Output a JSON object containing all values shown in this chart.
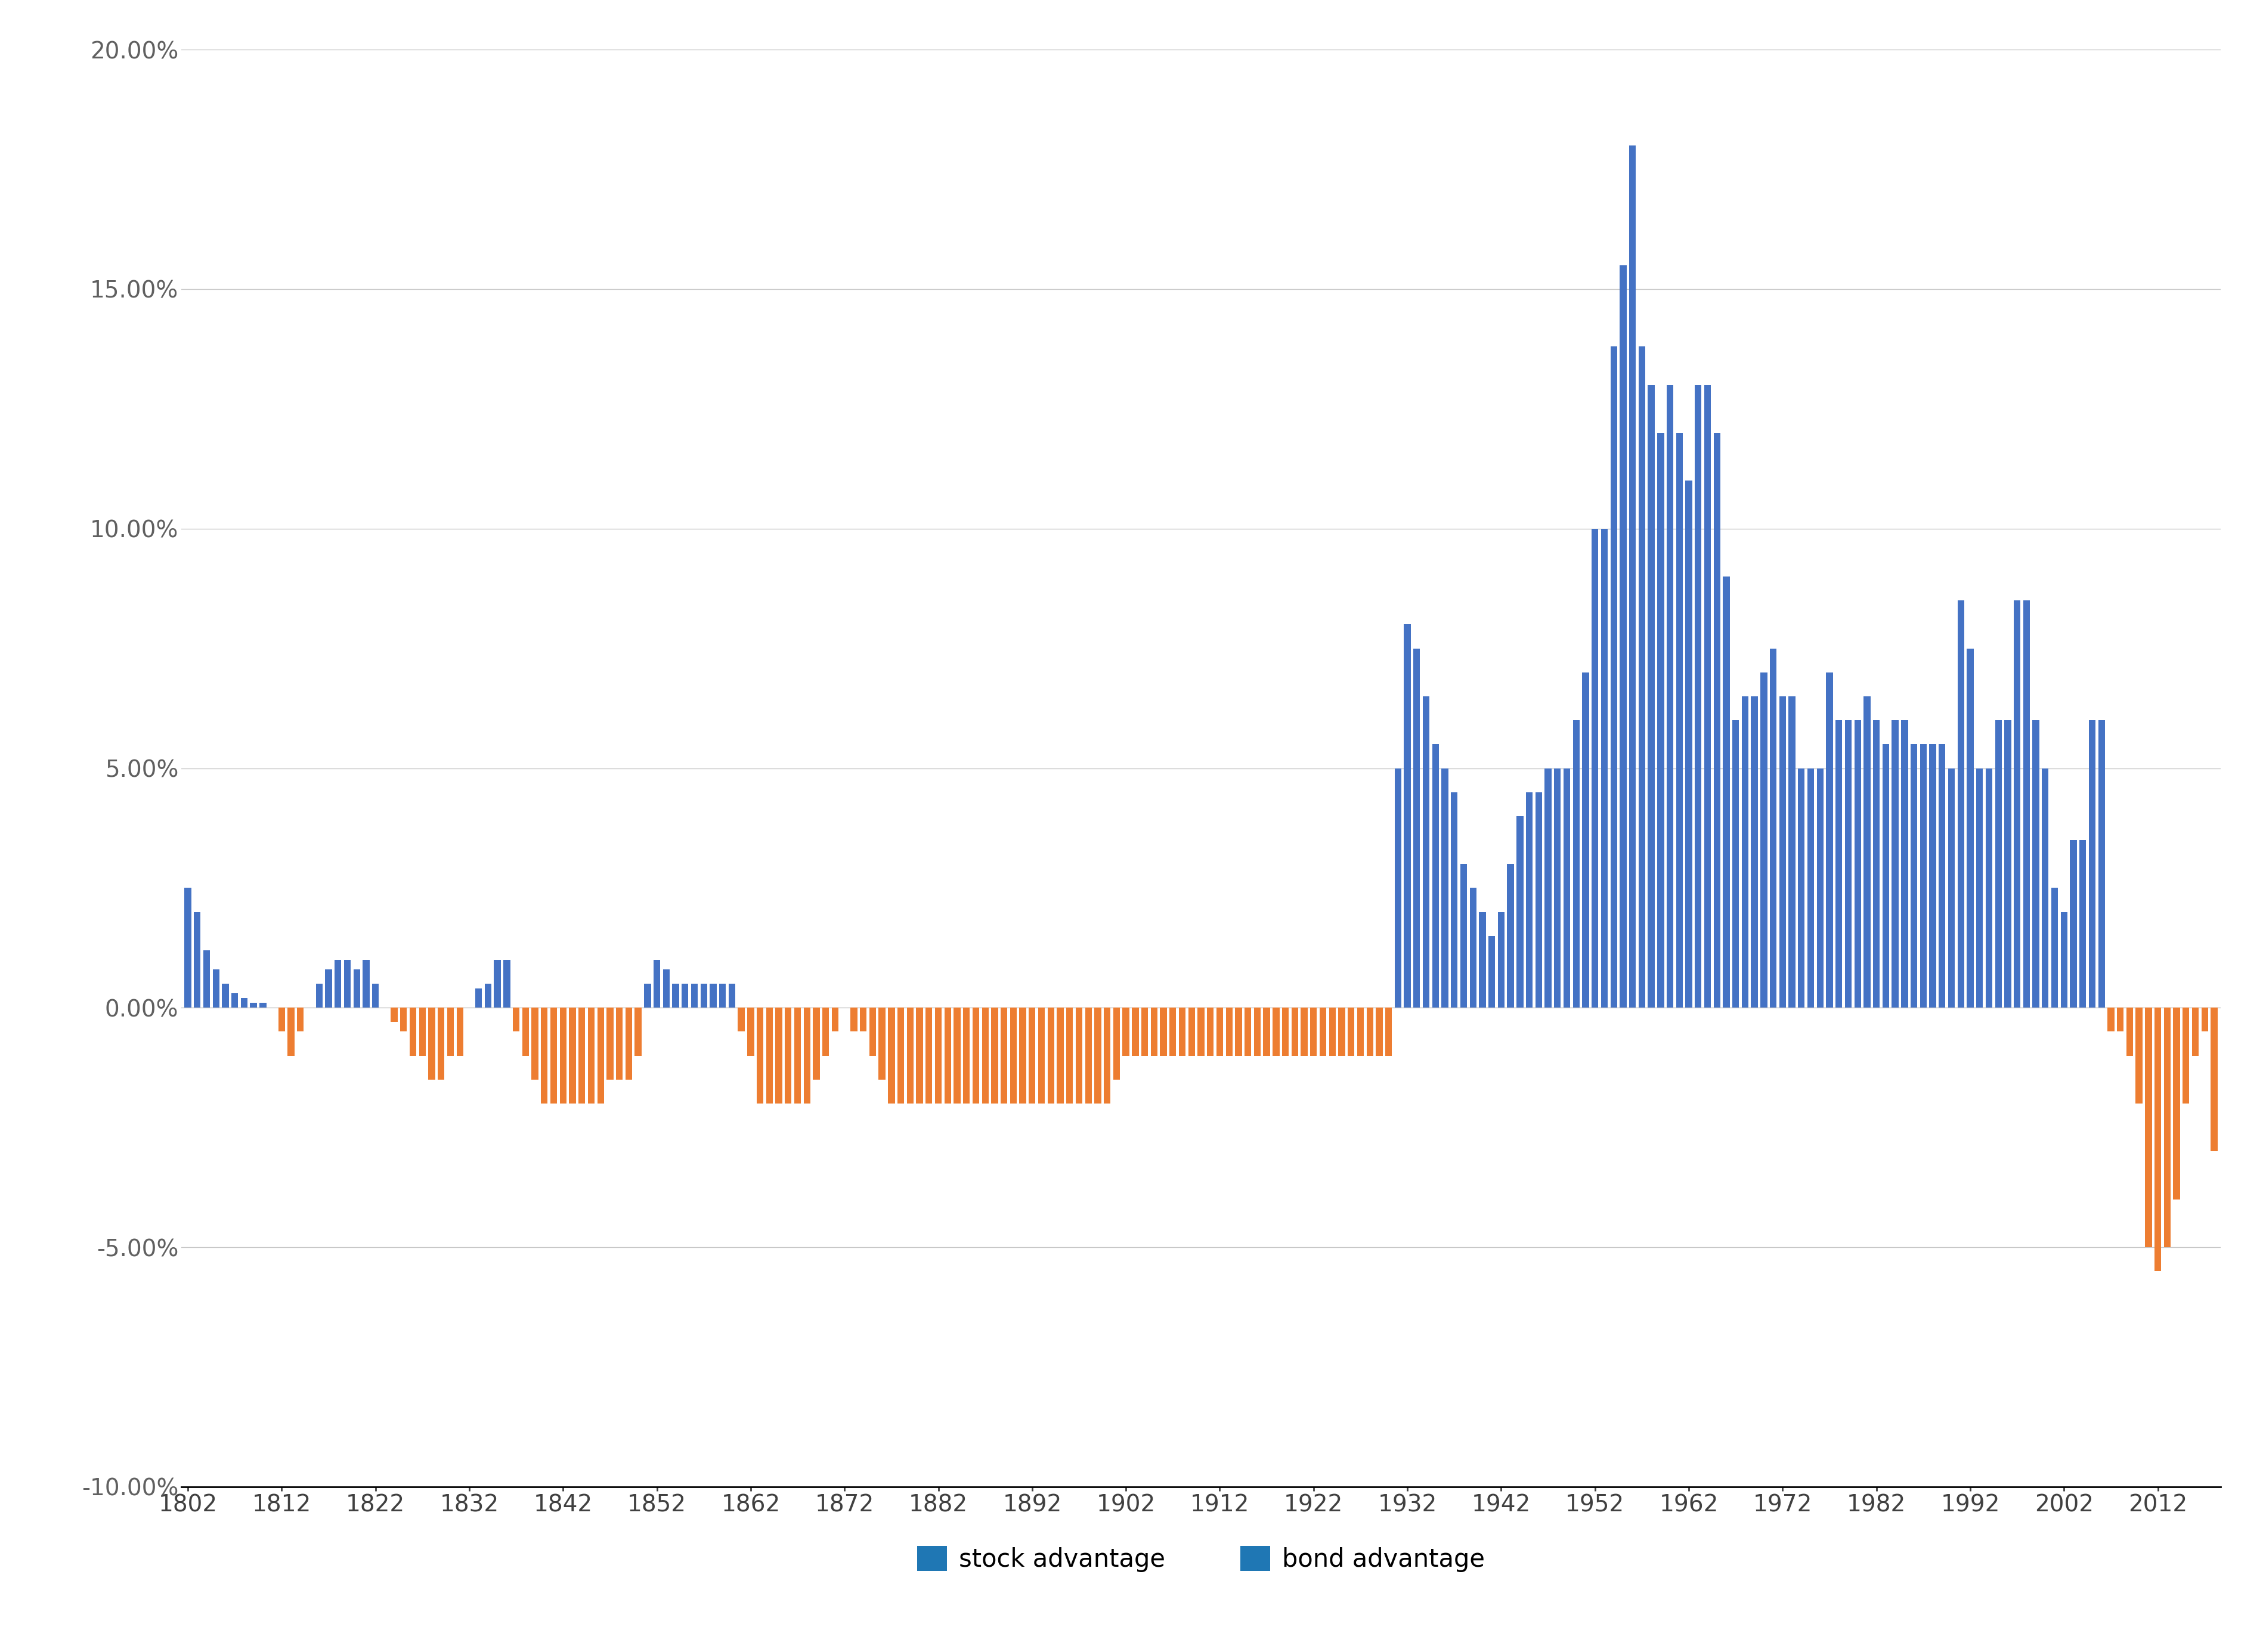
{
  "background_color": "#ffffff",
  "stock_color": "#4472C4",
  "bond_color": "#ED7D31",
  "ylim_min": -0.1,
  "ylim_max": 0.2,
  "yticks": [
    -0.1,
    -0.05,
    0.0,
    0.05,
    0.1,
    0.15,
    0.2
  ],
  "legend_labels": [
    "stock advantage",
    "bond advantage"
  ],
  "years": [
    1802,
    1803,
    1804,
    1805,
    1806,
    1807,
    1808,
    1809,
    1810,
    1811,
    1812,
    1813,
    1814,
    1815,
    1816,
    1817,
    1818,
    1819,
    1820,
    1821,
    1822,
    1823,
    1824,
    1825,
    1826,
    1827,
    1828,
    1829,
    1830,
    1831,
    1832,
    1833,
    1834,
    1835,
    1836,
    1837,
    1838,
    1839,
    1840,
    1841,
    1842,
    1843,
    1844,
    1845,
    1846,
    1847,
    1848,
    1849,
    1850,
    1851,
    1852,
    1853,
    1854,
    1855,
    1856,
    1857,
    1858,
    1859,
    1860,
    1861,
    1862,
    1863,
    1864,
    1865,
    1866,
    1867,
    1868,
    1869,
    1870,
    1871,
    1872,
    1873,
    1874,
    1875,
    1876,
    1877,
    1878,
    1879,
    1880,
    1881,
    1882,
    1883,
    1884,
    1885,
    1886,
    1887,
    1888,
    1889,
    1890,
    1891,
    1892,
    1893,
    1894,
    1895,
    1896,
    1897,
    1898,
    1899,
    1900,
    1901,
    1902,
    1903,
    1904,
    1905,
    1906,
    1907,
    1908,
    1909,
    1910,
    1911,
    1912,
    1913,
    1914,
    1915,
    1916,
    1917,
    1918,
    1919,
    1920,
    1921,
    1922,
    1923,
    1924,
    1925,
    1926,
    1927,
    1928,
    1929,
    1930,
    1931,
    1932,
    1933,
    1934,
    1935,
    1936,
    1937,
    1938,
    1939,
    1940,
    1941,
    1942,
    1943,
    1944,
    1945,
    1946,
    1947,
    1948,
    1949,
    1950,
    1951,
    1952,
    1953,
    1954,
    1955,
    1956,
    1957,
    1958,
    1959,
    1960,
    1961,
    1962,
    1963,
    1964,
    1965,
    1966,
    1967,
    1968,
    1969,
    1970,
    1971,
    1972,
    1973,
    1974,
    1975,
    1976,
    1977,
    1978,
    1979,
    1980,
    1981,
    1982,
    1983,
    1984,
    1985,
    1986,
    1987,
    1988,
    1989,
    1990,
    1991,
    1992,
    1993,
    1994,
    1995,
    1996,
    1997,
    1998,
    1999,
    2000,
    2001,
    2002,
    2003,
    2004,
    2005,
    2006,
    2007,
    2008,
    2009,
    2010,
    2011,
    2012,
    2013,
    2014,
    2015,
    2016,
    2017,
    2018
  ],
  "values": [
    0.025,
    0.02,
    0.012,
    0.008,
    0.005,
    0.003,
    0.002,
    0.001,
    0.001,
    0.0,
    -0.005,
    -0.01,
    -0.005,
    0.0,
    0.005,
    0.008,
    0.01,
    0.01,
    0.008,
    0.01,
    0.005,
    0.0,
    -0.003,
    -0.005,
    -0.01,
    -0.01,
    -0.015,
    -0.015,
    -0.01,
    -0.01,
    0.0,
    0.004,
    0.005,
    0.01,
    0.01,
    -0.005,
    -0.01,
    -0.015,
    -0.02,
    -0.02,
    -0.02,
    -0.02,
    -0.02,
    -0.02,
    -0.02,
    -0.015,
    -0.015,
    -0.015,
    -0.01,
    0.005,
    0.01,
    0.008,
    0.005,
    0.005,
    0.005,
    0.005,
    0.005,
    0.005,
    0.005,
    -0.005,
    -0.01,
    -0.02,
    -0.02,
    -0.02,
    -0.02,
    -0.02,
    -0.02,
    -0.015,
    -0.01,
    -0.005,
    0.0,
    -0.005,
    -0.005,
    -0.01,
    -0.015,
    -0.02,
    -0.02,
    -0.02,
    -0.02,
    -0.02,
    -0.02,
    -0.02,
    -0.02,
    -0.02,
    -0.02,
    -0.02,
    -0.02,
    -0.02,
    -0.02,
    -0.02,
    -0.02,
    -0.02,
    -0.02,
    -0.02,
    -0.02,
    -0.02,
    -0.02,
    -0.02,
    -0.02,
    -0.015,
    -0.01,
    -0.01,
    -0.01,
    -0.01,
    -0.01,
    -0.01,
    -0.01,
    -0.01,
    -0.01,
    -0.01,
    -0.01,
    -0.01,
    -0.01,
    -0.01,
    -0.01,
    -0.01,
    -0.01,
    -0.01,
    -0.01,
    -0.01,
    -0.01,
    -0.01,
    -0.01,
    -0.01,
    -0.01,
    -0.01,
    -0.01,
    -0.01,
    -0.01,
    0.05,
    0.08,
    0.075,
    0.065,
    0.055,
    0.05,
    0.045,
    0.03,
    0.025,
    0.02,
    0.015,
    0.02,
    0.03,
    0.04,
    0.045,
    0.045,
    0.05,
    0.05,
    0.05,
    0.06,
    0.07,
    0.1,
    0.1,
    0.138,
    0.155,
    0.18,
    0.138,
    0.13,
    0.12,
    0.13,
    0.12,
    0.11,
    0.13,
    0.13,
    0.12,
    0.09,
    0.06,
    0.065,
    0.065,
    0.07,
    0.075,
    0.065,
    0.065,
    0.05,
    0.05,
    0.05,
    0.07,
    0.06,
    0.06,
    0.06,
    0.065,
    0.06,
    0.055,
    0.06,
    0.06,
    0.055,
    0.055,
    0.055,
    0.055,
    0.05,
    0.085,
    0.075,
    0.05,
    0.05,
    0.06,
    0.06,
    0.085,
    0.085,
    0.06,
    0.05,
    0.025,
    0.02,
    0.035,
    0.035,
    0.06,
    0.06,
    -0.005,
    -0.005,
    -0.01,
    -0.02,
    -0.05,
    -0.055,
    -0.05,
    -0.04,
    -0.02,
    -0.01,
    -0.005,
    -0.03
  ]
}
